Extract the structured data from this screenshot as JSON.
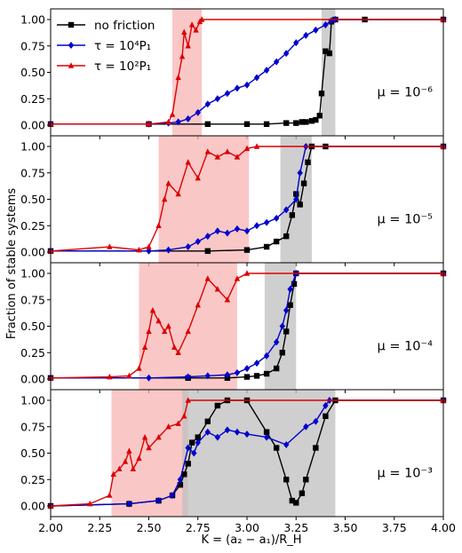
{
  "figure": {
    "ylabel": "Fraction of stable systems",
    "xlabel": "K = (a₂ − a₁)/R_H"
  },
  "legend": {
    "placement": "top-left of first panel",
    "entries": [
      {
        "label": "no friction",
        "color": "#000000",
        "marker": "square"
      },
      {
        "label": "τ = 10⁴P₁",
        "color": "#0000cc",
        "marker": "diamond"
      },
      {
        "label": "τ = 10²P₁",
        "color": "#dd0000",
        "marker": "triangle"
      }
    ]
  },
  "chart_data": [
    {
      "type": "line",
      "annotation": "μ = 10⁻⁶",
      "xlim": [
        2.0,
        4.0
      ],
      "ylim": [
        0.0,
        1.0
      ],
      "yticks": [
        "0.00",
        "0.25",
        "0.50",
        "0.75",
        "1.00"
      ],
      "shaded_regions": [
        {
          "x": [
            2.62,
            2.77
          ],
          "color": "#f8b4b4"
        },
        {
          "x": [
            3.38,
            3.45
          ],
          "color": "#bfbfbf"
        }
      ],
      "series": [
        {
          "name": "no friction",
          "color": "#000000",
          "x": [
            2.0,
            2.5,
            2.8,
            3.0,
            3.1,
            3.2,
            3.25,
            3.28,
            3.3,
            3.33,
            3.35,
            3.37,
            3.38,
            3.4,
            3.42,
            3.43,
            3.45,
            3.6,
            4.0
          ],
          "y": [
            0.01,
            0.01,
            0.01,
            0.01,
            0.01,
            0.02,
            0.02,
            0.03,
            0.03,
            0.04,
            0.05,
            0.09,
            0.3,
            0.7,
            0.68,
            0.98,
            1.0,
            1.0,
            1.0
          ]
        },
        {
          "name": "τ = 10⁴P₁",
          "color": "#0000cc",
          "x": [
            2.0,
            2.5,
            2.6,
            2.65,
            2.7,
            2.75,
            2.8,
            2.85,
            2.9,
            2.95,
            3.0,
            3.05,
            3.1,
            3.15,
            3.2,
            3.25,
            3.3,
            3.35,
            3.4,
            3.43,
            3.45,
            4.0
          ],
          "y": [
            0.01,
            0.01,
            0.02,
            0.03,
            0.06,
            0.12,
            0.2,
            0.25,
            0.3,
            0.35,
            0.38,
            0.45,
            0.52,
            0.6,
            0.68,
            0.78,
            0.85,
            0.9,
            0.95,
            0.99,
            1.0,
            1.0
          ]
        },
        {
          "name": "τ = 10²P₁",
          "color": "#dd0000",
          "x": [
            2.0,
            2.5,
            2.6,
            2.62,
            2.65,
            2.67,
            2.68,
            2.7,
            2.72,
            2.74,
            2.76,
            2.77,
            4.0
          ],
          "y": [
            0.01,
            0.01,
            0.03,
            0.1,
            0.45,
            0.65,
            0.88,
            0.75,
            0.95,
            0.9,
            0.98,
            1.0,
            1.0
          ]
        }
      ]
    },
    {
      "type": "line",
      "annotation": "μ = 10⁻⁵",
      "xlim": [
        2.0,
        4.0
      ],
      "ylim": [
        0.0,
        1.0
      ],
      "yticks": [
        "0.00",
        "0.25",
        "0.50",
        "0.75",
        "1.00"
      ],
      "shaded_regions": [
        {
          "x": [
            2.55,
            3.01
          ],
          "color": "#f8b4b4"
        },
        {
          "x": [
            3.17,
            3.33
          ],
          "color": "#bfbfbf"
        }
      ],
      "series": [
        {
          "name": "no friction",
          "color": "#000000",
          "x": [
            2.0,
            2.8,
            3.0,
            3.1,
            3.15,
            3.2,
            3.23,
            3.25,
            3.27,
            3.29,
            3.31,
            3.33,
            3.4,
            4.0
          ],
          "y": [
            0.01,
            0.01,
            0.02,
            0.05,
            0.1,
            0.15,
            0.35,
            0.55,
            0.45,
            0.65,
            0.85,
            1.0,
            1.0,
            1.0
          ]
        },
        {
          "name": "τ = 10⁴P₁",
          "color": "#0000cc",
          "x": [
            2.0,
            2.5,
            2.6,
            2.7,
            2.75,
            2.8,
            2.85,
            2.9,
            2.95,
            3.0,
            3.05,
            3.1,
            3.15,
            3.2,
            3.25,
            3.27,
            3.3,
            4.0
          ],
          "y": [
            0.01,
            0.01,
            0.02,
            0.05,
            0.1,
            0.15,
            0.2,
            0.18,
            0.22,
            0.2,
            0.25,
            0.28,
            0.32,
            0.4,
            0.5,
            0.75,
            1.0,
            1.0
          ]
        },
        {
          "name": "τ = 10²P₁",
          "color": "#dd0000",
          "x": [
            2.0,
            2.3,
            2.45,
            2.5,
            2.55,
            2.58,
            2.6,
            2.65,
            2.7,
            2.75,
            2.8,
            2.85,
            2.9,
            2.95,
            3.0,
            3.05,
            4.0
          ],
          "y": [
            0.01,
            0.05,
            0.02,
            0.05,
            0.25,
            0.5,
            0.65,
            0.55,
            0.85,
            0.7,
            0.95,
            0.9,
            0.95,
            0.9,
            0.98,
            1.0,
            1.0
          ]
        }
      ]
    },
    {
      "type": "line",
      "annotation": "μ = 10⁻⁴",
      "xlim": [
        2.0,
        4.0
      ],
      "ylim": [
        0.0,
        1.0
      ],
      "yticks": [
        "0.00",
        "0.25",
        "0.50",
        "0.75",
        "1.00"
      ],
      "shaded_regions": [
        {
          "x": [
            2.45,
            2.95
          ],
          "color": "#f8b4b4"
        },
        {
          "x": [
            3.09,
            3.25
          ],
          "color": "#bfbfbf"
        }
      ],
      "series": [
        {
          "name": "no friction",
          "color": "#000000",
          "x": [
            2.0,
            2.7,
            2.9,
            3.0,
            3.05,
            3.1,
            3.15,
            3.18,
            3.2,
            3.22,
            3.24,
            3.25,
            4.0
          ],
          "y": [
            0.01,
            0.01,
            0.01,
            0.02,
            0.03,
            0.05,
            0.1,
            0.25,
            0.45,
            0.7,
            0.9,
            1.0,
            1.0
          ]
        },
        {
          "name": "τ = 10⁴P₁",
          "color": "#0000cc",
          "x": [
            2.0,
            2.5,
            2.7,
            2.8,
            2.9,
            2.95,
            3.0,
            3.05,
            3.1,
            3.15,
            3.18,
            3.2,
            3.22,
            3.25,
            4.0
          ],
          "y": [
            0.01,
            0.01,
            0.02,
            0.03,
            0.04,
            0.06,
            0.1,
            0.15,
            0.22,
            0.35,
            0.5,
            0.65,
            0.85,
            1.0,
            1.0
          ]
        },
        {
          "name": "τ = 10²P₁",
          "color": "#dd0000",
          "x": [
            2.0,
            2.3,
            2.4,
            2.45,
            2.48,
            2.5,
            2.52,
            2.55,
            2.58,
            2.6,
            2.63,
            2.65,
            2.7,
            2.75,
            2.8,
            2.85,
            2.9,
            2.95,
            3.0,
            4.0
          ],
          "y": [
            0.01,
            0.02,
            0.03,
            0.1,
            0.3,
            0.45,
            0.65,
            0.55,
            0.45,
            0.5,
            0.3,
            0.25,
            0.45,
            0.7,
            0.95,
            0.85,
            0.75,
            0.95,
            1.0,
            1.0
          ]
        }
      ]
    },
    {
      "type": "line",
      "annotation": "μ = 10⁻³",
      "xlim": [
        2.0,
        4.0
      ],
      "ylim": [
        0.0,
        1.0
      ],
      "xticks": [
        "2.00",
        "2.25",
        "2.50",
        "2.75",
        "3.00",
        "3.25",
        "3.50",
        "3.75",
        "4.00"
      ],
      "yticks": [
        "0.00",
        "0.25",
        "0.50",
        "0.75",
        "1.00"
      ],
      "shaded_regions": [
        {
          "x": [
            2.31,
            2.7
          ],
          "color": "#f8b4b4"
        },
        {
          "x": [
            2.67,
            3.45
          ],
          "color": "#bfbfbf"
        }
      ],
      "series": [
        {
          "name": "no friction",
          "color": "#000000",
          "x": [
            2.0,
            2.4,
            2.55,
            2.62,
            2.66,
            2.68,
            2.7,
            2.72,
            2.75,
            2.8,
            2.85,
            2.9,
            3.0,
            3.1,
            3.15,
            3.2,
            3.23,
            3.25,
            3.28,
            3.3,
            3.35,
            3.4,
            3.45,
            4.0
          ],
          "y": [
            0.0,
            0.02,
            0.05,
            0.1,
            0.2,
            0.3,
            0.4,
            0.6,
            0.65,
            0.8,
            0.95,
            1.0,
            1.0,
            0.7,
            0.55,
            0.25,
            0.05,
            0.03,
            0.12,
            0.25,
            0.55,
            0.85,
            1.0,
            1.0
          ]
        },
        {
          "name": "τ = 10⁴P₁",
          "color": "#0000cc",
          "x": [
            2.0,
            2.4,
            2.55,
            2.62,
            2.66,
            2.7,
            2.73,
            2.75,
            2.8,
            2.85,
            2.9,
            2.95,
            3.0,
            3.1,
            3.2,
            3.3,
            3.35,
            3.4,
            3.42,
            4.0
          ],
          "y": [
            0.0,
            0.02,
            0.05,
            0.1,
            0.25,
            0.55,
            0.5,
            0.6,
            0.7,
            0.65,
            0.72,
            0.7,
            0.68,
            0.65,
            0.58,
            0.75,
            0.8,
            0.95,
            1.0,
            1.0
          ]
        },
        {
          "name": "τ = 10²P₁",
          "color": "#dd0000",
          "x": [
            2.0,
            2.2,
            2.3,
            2.32,
            2.35,
            2.38,
            2.4,
            2.42,
            2.45,
            2.48,
            2.5,
            2.55,
            2.6,
            2.65,
            2.68,
            2.7,
            4.0
          ],
          "y": [
            0.0,
            0.02,
            0.1,
            0.3,
            0.35,
            0.42,
            0.52,
            0.35,
            0.45,
            0.65,
            0.55,
            0.65,
            0.75,
            0.78,
            0.85,
            1.0,
            1.0
          ]
        }
      ]
    }
  ]
}
